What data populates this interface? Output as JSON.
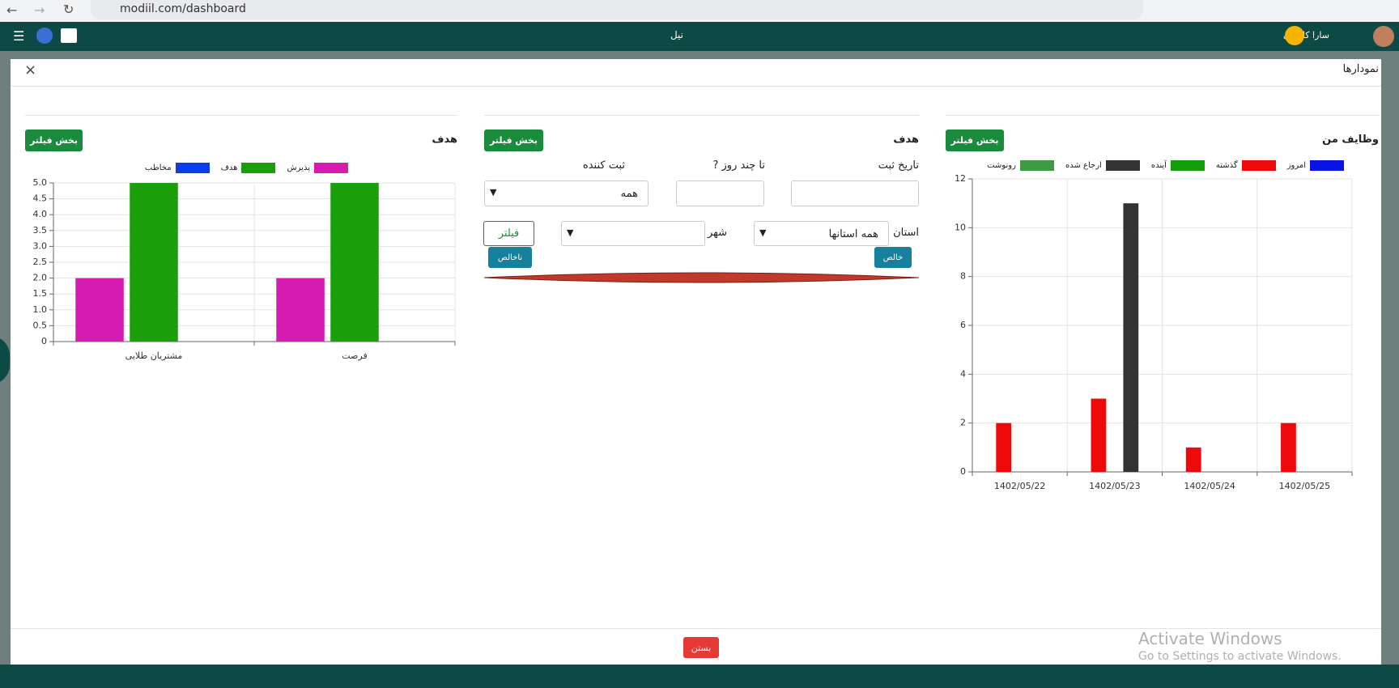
{
  "browser": {
    "url": "modiil.com/dashboard"
  },
  "header": {
    "title": "نیل",
    "user": "سارا کاویانی"
  },
  "modal": {
    "title": "نمودارها",
    "close_button": "بستن"
  },
  "panels": [
    {
      "title": "وظایف من",
      "filter_button": "بخش فیلتر",
      "chart": {
        "type": "bar",
        "categories": [
          "1402/05/22",
          "1402/05/23",
          "1402/05/24",
          "1402/05/25"
        ],
        "series": [
          {
            "name": "امروز",
            "color": "#0a14e6",
            "values": [
              0,
              0,
              0,
              0
            ]
          },
          {
            "name": "گذشته",
            "color": "#ee0a0a",
            "values": [
              2,
              3,
              1,
              2
            ]
          },
          {
            "name": "آینده",
            "color": "#14a00c",
            "values": [
              0,
              0,
              0,
              0
            ]
          },
          {
            "name": "ارجاع شده",
            "color": "#333333",
            "values": [
              0,
              11,
              0,
              0
            ]
          },
          {
            "name": "رونوشت",
            "color": "#3e9a44",
            "values": [
              0,
              0,
              0,
              0
            ]
          }
        ],
        "ylim": [
          0,
          12
        ],
        "yticks": [
          0,
          2,
          4,
          6,
          8,
          10,
          12
        ],
        "grid": true
      }
    },
    {
      "title": "هدف",
      "filter_button": "بخش فیلتر",
      "form": {
        "date_label": "تاریخ ثبت",
        "days_label": "تا چند روز ?",
        "registrar_label": "ثبت کننده",
        "registrar_value": "همه",
        "province_label": "استان",
        "province_value": "همه استانها",
        "city_label": "شهر",
        "filter_button": "فیلتر",
        "net_button": "خالص",
        "gross_button": "ناخالص"
      }
    },
    {
      "title": "هدف",
      "filter_button": "بخش فیلتر",
      "chart": {
        "type": "bar",
        "categories": [
          "مشتریان طلایی",
          "فرصت"
        ],
        "series": [
          {
            "name": "پذیرش",
            "color": "#d61bb0",
            "values": [
              2,
              2
            ]
          },
          {
            "name": "هدف",
            "color": "#1a9e0a",
            "values": [
              5,
              5
            ]
          },
          {
            "name": "مخاطب",
            "color": "#0a3cf0",
            "values": [
              0,
              0
            ]
          }
        ],
        "ylim": [
          0,
          5
        ],
        "yticks": [
          0,
          0.5,
          {
            "value": 1,
            "label": "1.0"
          },
          1.5,
          {
            "value": 2,
            "label": "2.0"
          },
          2.5,
          {
            "value": 3,
            "label": "3.0"
          },
          3.5,
          {
            "value": 4,
            "label": "4.0"
          },
          4.5,
          {
            "value": 5,
            "label": "5.0"
          }
        ],
        "grid": true
      }
    }
  ],
  "watermark": {
    "title": "Activate Windows",
    "subtitle": "Go to Settings to activate Windows."
  }
}
